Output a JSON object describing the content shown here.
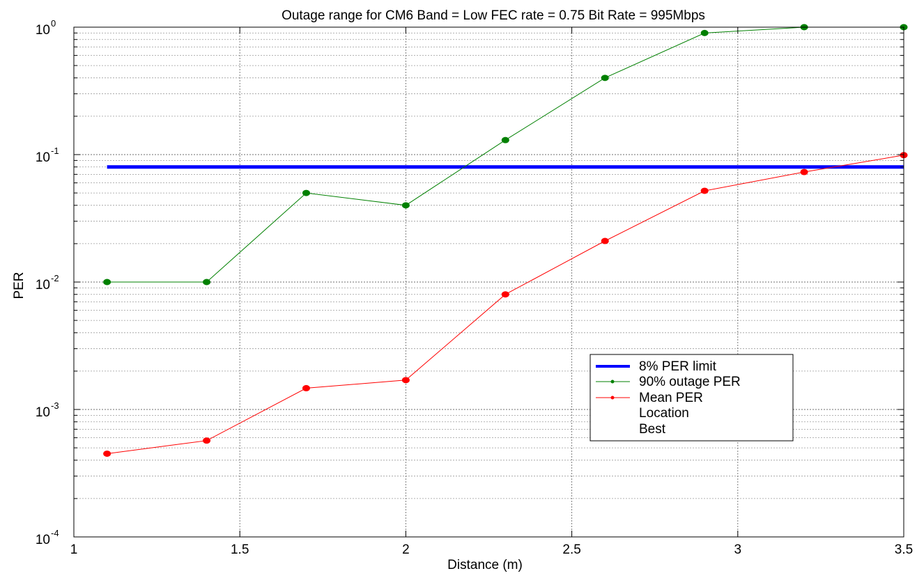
{
  "chart_data": {
    "type": "line",
    "title": "Outage range for CM6  Band = Low  FEC rate = 0.75  Bit Rate = 995Mbps",
    "xlabel": "Distance (m)",
    "ylabel": "PER",
    "xlim": [
      1,
      3.5
    ],
    "ylim": [
      0.0001,
      1
    ],
    "yscale": "log",
    "grid": true,
    "x_ticks": [
      {
        "value": 1,
        "label": "1"
      },
      {
        "value": 1.5,
        "label": "1.5"
      },
      {
        "value": 2,
        "label": "2"
      },
      {
        "value": 2.5,
        "label": "2.5"
      },
      {
        "value": 3,
        "label": "3"
      },
      {
        "value": 3.5,
        "label": "3.5"
      }
    ],
    "y_ticks": [
      {
        "value": 0.0001,
        "base": "10",
        "exp": "-4"
      },
      {
        "value": 0.001,
        "base": "10",
        "exp": "-3"
      },
      {
        "value": 0.01,
        "base": "10",
        "exp": "-2"
      },
      {
        "value": 0.1,
        "base": "10",
        "exp": "-1"
      },
      {
        "value": 1,
        "base": "10",
        "exp": "0"
      }
    ],
    "legend_position": "lower-right",
    "legend_extra": [
      "Location",
      "Best"
    ],
    "series": [
      {
        "name": "8% PER limit",
        "color": "#0000ff",
        "style": "thick-line",
        "x": [
          1.1,
          3.5
        ],
        "y": [
          0.08,
          0.08
        ]
      },
      {
        "name": "90% outage PER",
        "color": "#008000",
        "style": "line-marker",
        "x": [
          1.1,
          1.4,
          1.7,
          2.0,
          2.3,
          2.6,
          2.9,
          3.2,
          3.5
        ],
        "y": [
          0.01,
          0.01,
          0.05,
          0.04,
          0.13,
          0.4,
          0.9,
          1.0,
          1.0
        ]
      },
      {
        "name": "Mean PER",
        "color": "#ff0000",
        "style": "line-marker",
        "x": [
          1.1,
          1.4,
          1.7,
          2.0,
          2.3,
          2.6,
          2.9,
          3.2,
          3.5
        ],
        "y": [
          0.00045,
          0.00057,
          0.00147,
          0.0017,
          0.008,
          0.021,
          0.052,
          0.073,
          0.099
        ]
      }
    ]
  }
}
